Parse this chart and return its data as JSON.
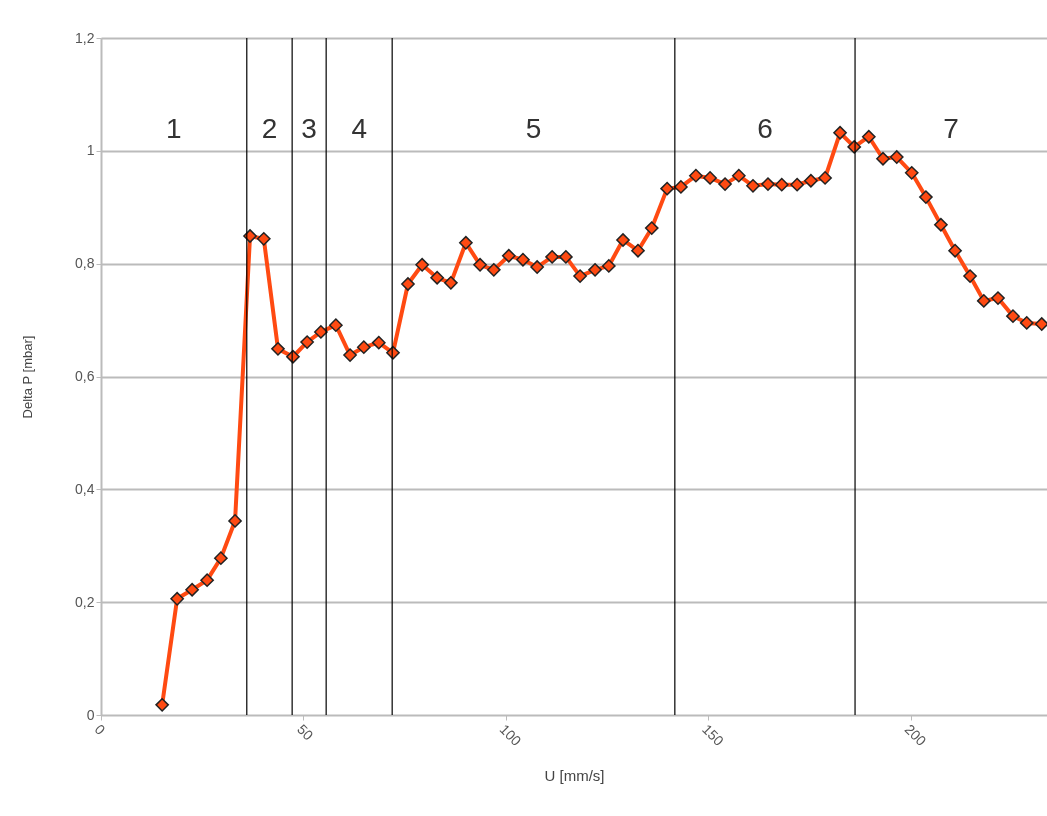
{
  "chart_data": {
    "type": "line",
    "xlabel": "U  [mm/s]",
    "ylabel": "Delta P [mbar]",
    "xlim": [
      0,
      233.6
    ],
    "ylim": [
      0,
      1.2
    ],
    "xticks": [
      0,
      50,
      100,
      150,
      200
    ],
    "yticks": [
      0,
      {
        "value": 0.2,
        "label": "0,2"
      },
      {
        "value": 0.4,
        "label": "0,4"
      },
      {
        "value": 0.6,
        "label": "0,6"
      },
      {
        "value": 0.8,
        "label": "0,8"
      },
      1,
      {
        "value": 1.2,
        "label": "1,2"
      }
    ],
    "grid": "y",
    "marker": "diamond",
    "line_style": "solid",
    "x": [
      15.1,
      18.8,
      22.5,
      26.2,
      29.6,
      33.1,
      36.8,
      40.2,
      43.7,
      47.4,
      50.9,
      54.3,
      58.0,
      61.5,
      64.9,
      68.6,
      72.1,
      75.8,
      79.3,
      83.0,
      86.4,
      90.1,
      93.6,
      97.0,
      100.7,
      104.2,
      107.7,
      111.4,
      114.8,
      118.3,
      122.0,
      125.4,
      128.9,
      132.6,
      136.0,
      139.8,
      143.2,
      146.9,
      150.4,
      154.1,
      157.5,
      161.0,
      164.7,
      168.1,
      171.9,
      175.3,
      178.8,
      182.5,
      186.0,
      189.6,
      193.1,
      196.5,
      200.2,
      203.7,
      207.4,
      210.9,
      214.6,
      218.0,
      221.5,
      225.2,
      228.6,
      232.3
    ],
    "series": [
      {
        "color": "#ff4a12",
        "values": [
          0.018,
          0.206,
          0.222,
          0.239,
          0.278,
          0.344,
          0.849,
          0.844,
          0.649,
          0.635,
          0.661,
          0.679,
          0.691,
          0.638,
          0.652,
          0.66,
          0.642,
          0.764,
          0.798,
          0.775,
          0.766,
          0.837,
          0.798,
          0.789,
          0.814,
          0.807,
          0.794,
          0.812,
          0.812,
          0.778,
          0.789,
          0.796,
          0.842,
          0.823,
          0.863,
          0.933,
          0.936,
          0.956,
          0.952,
          0.941,
          0.956,
          0.938,
          0.941,
          0.94,
          0.94,
          0.947,
          0.952,
          1.032,
          1.007,
          1.025,
          0.986,
          0.989,
          0.961,
          0.918,
          0.869,
          0.823,
          0.778,
          0.734,
          0.739,
          0.707,
          0.695,
          0.693
        ]
      }
    ],
    "ref_lines": [
      {
        "axis": "x",
        "value": 36.0,
        "color": "#000000"
      },
      {
        "axis": "x",
        "value": 47.2,
        "color": "#000000"
      },
      {
        "axis": "x",
        "value": 55.6,
        "color": "#000000"
      },
      {
        "axis": "x",
        "value": 71.9,
        "color": "#000000"
      },
      {
        "axis": "x",
        "value": 141.7,
        "color": "#000000"
      },
      {
        "axis": "x",
        "value": 186.2,
        "color": "#000000"
      }
    ],
    "annotations": [
      "1",
      "2",
      "3",
      "4",
      "5",
      "6",
      "7"
    ]
  }
}
